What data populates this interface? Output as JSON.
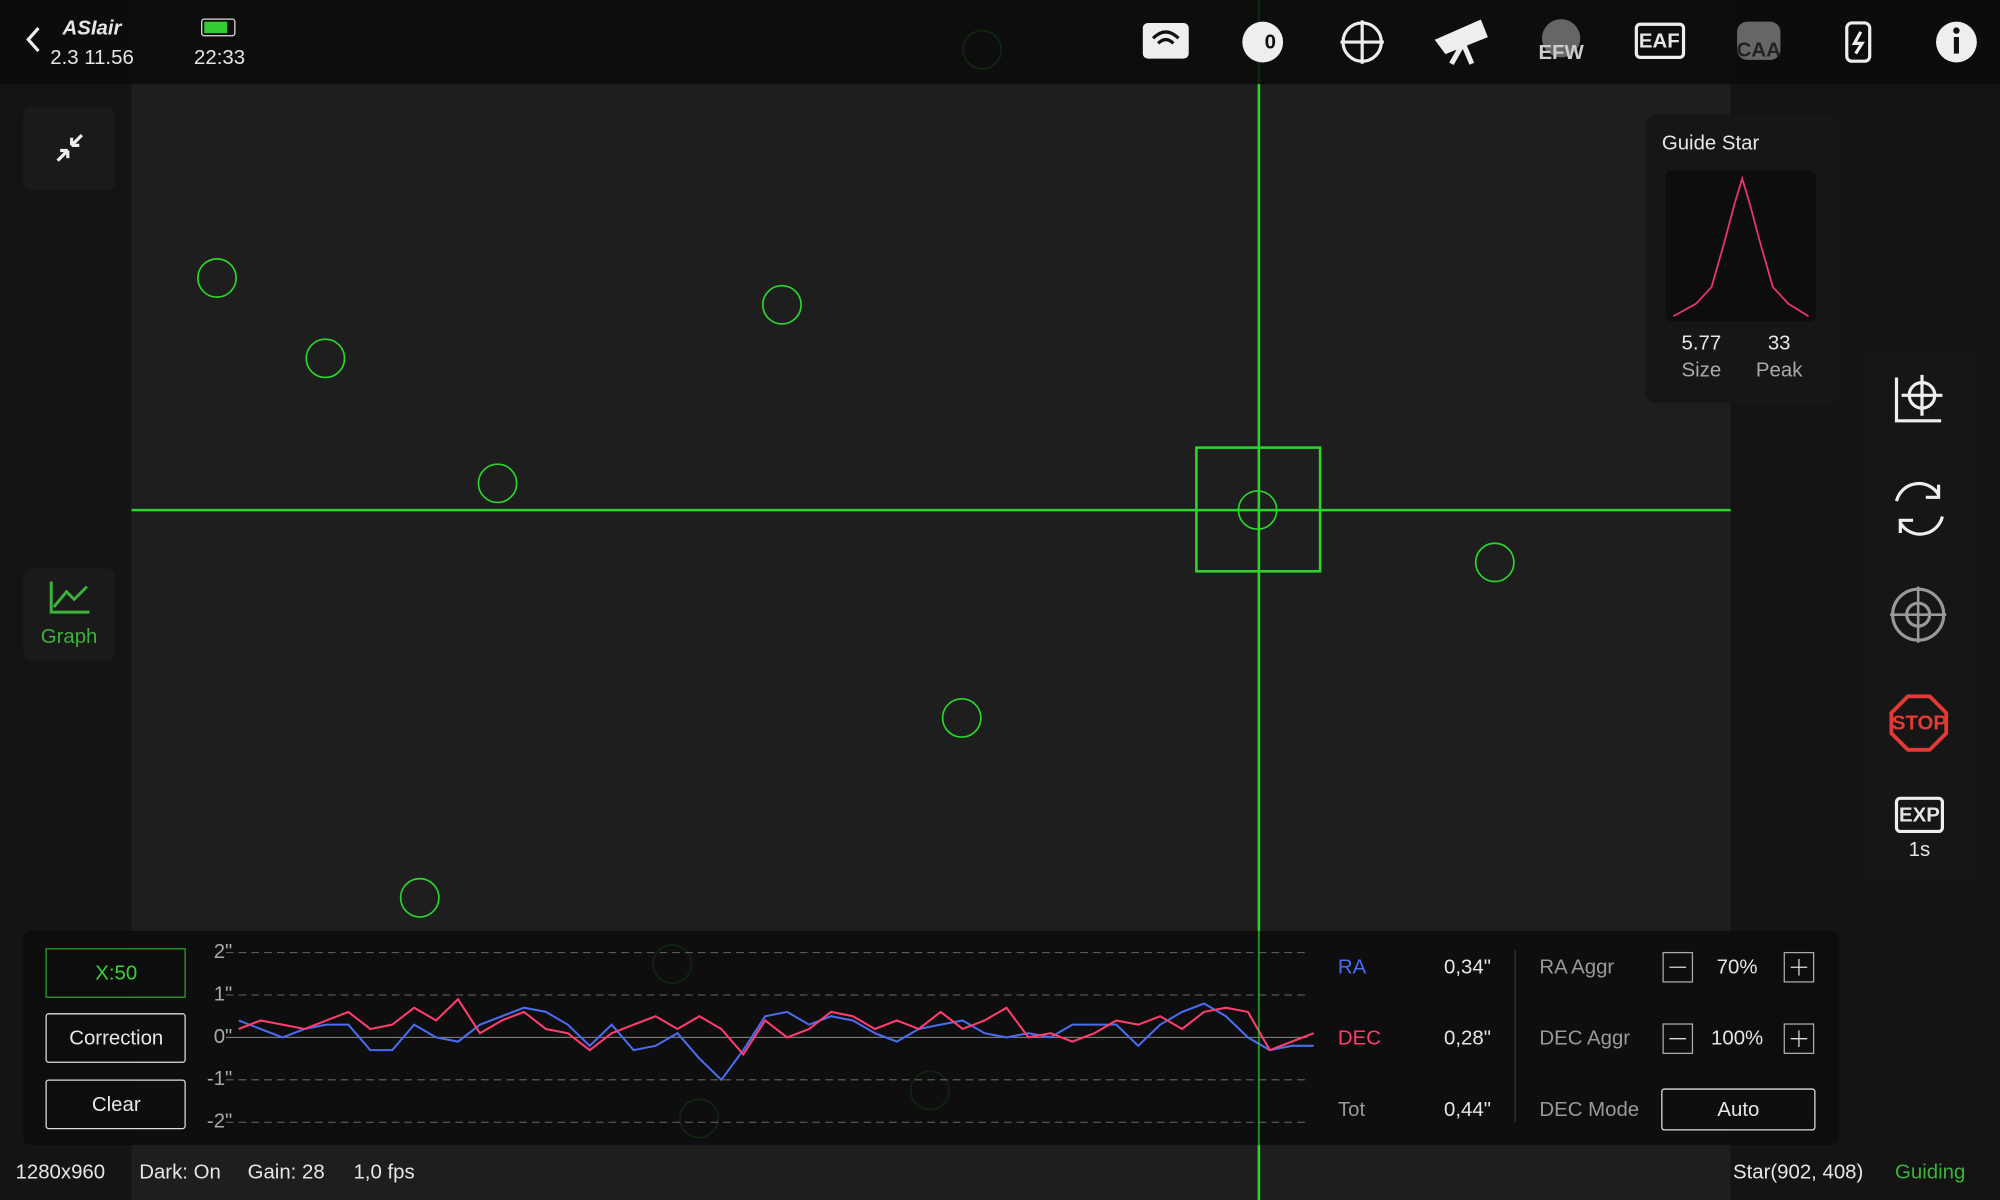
{
  "header": {
    "app": "ASIair",
    "version": "2.3 11.56",
    "time": "22:33"
  },
  "toolbar": {
    "bin_icon": "0",
    "efw": "EFW",
    "eaf": "EAF",
    "caa": "CAA"
  },
  "left": {
    "graph": "Graph"
  },
  "guide_star": {
    "title": "Guide Star",
    "size": "5.77",
    "size_label": "Size",
    "peak": "33",
    "peak_label": "Peak"
  },
  "right": {
    "stop": "STOP",
    "exp": "EXP",
    "exp_value": "1s"
  },
  "guide_panel": {
    "x_scale": "X:50",
    "correction": "Correction",
    "clear": "Clear",
    "ra_value": "0,34\"",
    "dec_value": "0,28\"",
    "tot_label": "Tot",
    "tot_value": "0,44\"",
    "ra_aggr_label": "RA Aggr",
    "ra_aggr": "70%",
    "dec_aggr_label": "DEC Aggr",
    "dec_aggr": "100%",
    "dec_mode_label": "DEC Mode",
    "dec_mode": "Auto"
  },
  "chart_data": {
    "type": "line",
    "ylim": [
      -2,
      2
    ],
    "yticks": [
      {
        "value": 2,
        "label": "2\""
      },
      {
        "value": 1,
        "label": "1\""
      },
      {
        "value": 0,
        "label": "0\""
      },
      {
        "value": -1,
        "label": "-1\""
      },
      {
        "value": -2,
        "label": "-2\""
      }
    ],
    "grid": true,
    "series": [
      {
        "name": "RA",
        "color": "#4a6cf0",
        "values": [
          0.4,
          0.2,
          0.0,
          0.2,
          0.3,
          0.3,
          -0.3,
          -0.3,
          0.3,
          0.0,
          -0.1,
          0.3,
          0.5,
          0.7,
          0.6,
          0.3,
          -0.2,
          0.3,
          -0.3,
          -0.2,
          0.1,
          -0.5,
          -1.0,
          -0.3,
          0.5,
          0.6,
          0.3,
          0.5,
          0.4,
          0.1,
          -0.1,
          0.2,
          0.3,
          0.4,
          0.1,
          0.0,
          0.1,
          0.0,
          0.3,
          0.3,
          0.3,
          -0.2,
          0.3,
          0.6,
          0.8,
          0.5,
          0.0,
          -0.3,
          -0.2,
          -0.2
        ]
      },
      {
        "name": "DEC",
        "color": "#ff3d6e",
        "values": [
          0.2,
          0.4,
          0.3,
          0.2,
          0.4,
          0.6,
          0.2,
          0.3,
          0.7,
          0.4,
          0.9,
          0.1,
          0.4,
          0.6,
          0.2,
          0.1,
          -0.3,
          0.1,
          0.3,
          0.5,
          0.2,
          0.5,
          0.2,
          -0.4,
          0.4,
          0.0,
          0.2,
          0.6,
          0.5,
          0.2,
          0.4,
          0.2,
          0.6,
          0.2,
          0.4,
          0.7,
          0.0,
          0.1,
          -0.1,
          0.1,
          0.4,
          0.3,
          0.5,
          0.2,
          0.6,
          0.7,
          0.6,
          -0.3,
          -0.1,
          0.1
        ]
      }
    ]
  },
  "status": {
    "resolution": "1280x960",
    "dark": "Dark: On",
    "gain": "Gain: 28",
    "fps": "1,0 fps",
    "star": "Star(902, 408)",
    "state": "Guiding"
  }
}
